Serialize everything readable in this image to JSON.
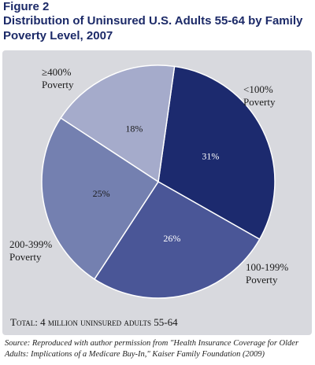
{
  "figure_label": "Figure 2",
  "title": "Distribution of Uninsured U.S. Adults 55-64 by Family Poverty Level, 2007",
  "footnote": "Total: 4 million uninsured adults 55-64",
  "source": "Source: Reproduced with author permission from \"Health Insurance Coverage for Older Adults: Implications of a Medicare Buy-In,\" Kaiser Family Foundation (2009)",
  "chart_data": {
    "type": "pie",
    "title": "Distribution of Uninsured U.S. Adults 55-64 by Family Poverty Level, 2007",
    "slices": [
      {
        "label": "<100% Poverty",
        "value": 31,
        "value_label": "31%",
        "color": "#1c2a6e"
      },
      {
        "label": "100-199% Poverty",
        "value": 26,
        "value_label": "26%",
        "color": "#4a5697"
      },
      {
        "label": "200-399% Poverty",
        "value": 25,
        "value_label": "25%",
        "color": "#7480b0"
      },
      {
        "label": "≥400% Poverty",
        "value": 18,
        "value_label": "18%",
        "color": "#a5abcb"
      }
    ]
  }
}
